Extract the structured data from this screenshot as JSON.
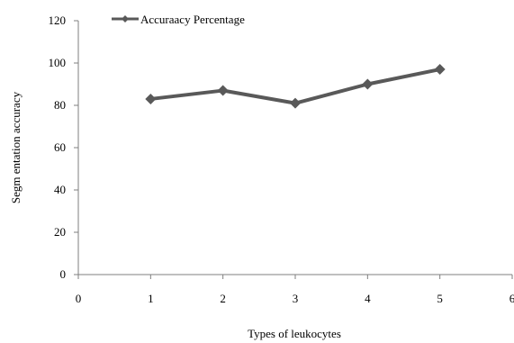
{
  "chart_data": {
    "type": "line",
    "x": [
      1,
      2,
      3,
      4,
      5
    ],
    "series": [
      {
        "name": "Accuraacy Percentage",
        "values": [
          83,
          87,
          81,
          90,
          97
        ]
      }
    ],
    "xlabel": "Types of leukocytes",
    "ylabel": "Segm entation accuracy",
    "xlim": [
      0,
      6
    ],
    "ylim": [
      0,
      120
    ],
    "xticks": [
      "0",
      "1",
      "2",
      "3",
      "4",
      "5",
      "6"
    ],
    "yticks": [
      "0",
      "20",
      "40",
      "60",
      "80",
      "100",
      "120"
    ],
    "grid": false,
    "legend_position": "top-left",
    "colors": {
      "series": "#595959",
      "axis": "#7f7f7f"
    }
  }
}
